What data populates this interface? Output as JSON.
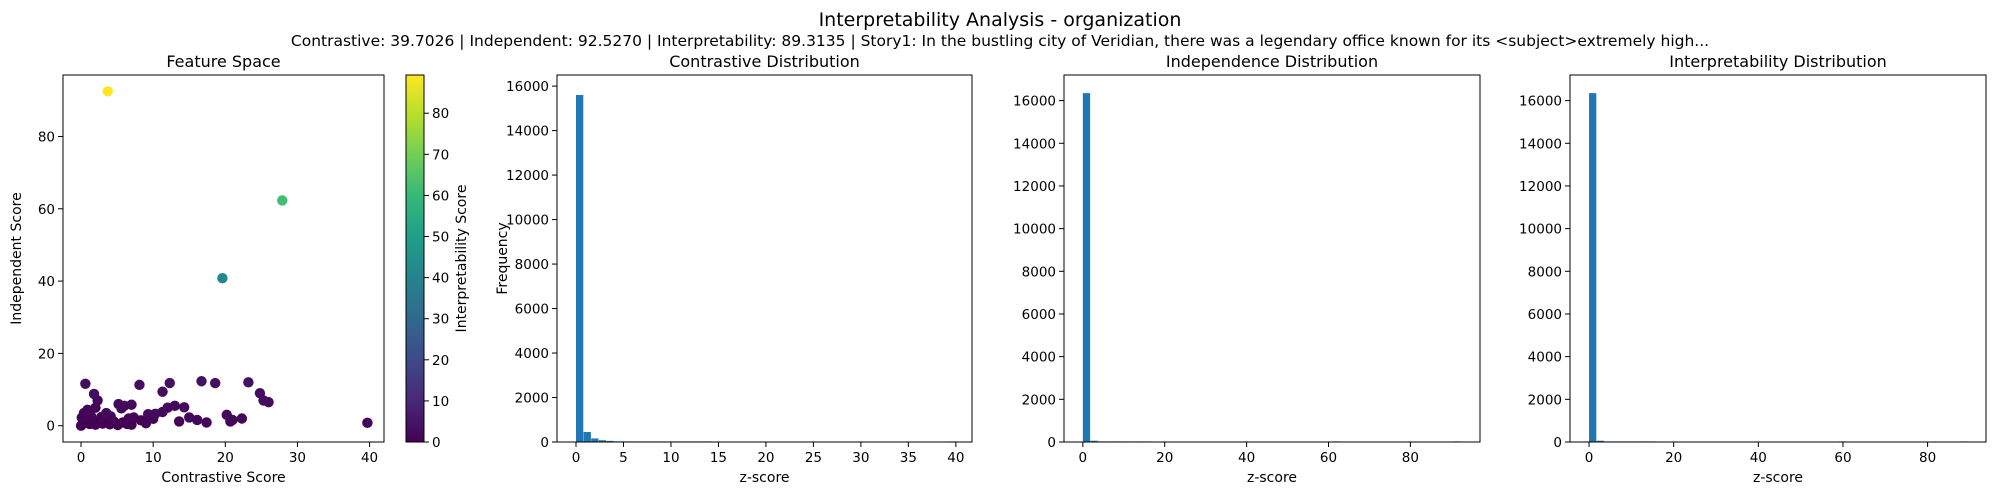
{
  "figure": {
    "title": "Interpretability Analysis - organization",
    "subtitle": "Contrastive: 39.7026 | Independent: 92.5270 | Interpretability: 89.3135 | Story1: In the bustling city of Veridian, there was a legendary office known for its <subject>extremely high..."
  },
  "colors": {
    "bar": "#1f77b4",
    "axis": "#000000",
    "viridis_stops": [
      "#440154",
      "#482878",
      "#3e4989",
      "#31688e",
      "#26828e",
      "#1f9e89",
      "#35b779",
      "#6ece58",
      "#b5de2b",
      "#fde725"
    ]
  },
  "chart_data": [
    {
      "type": "scatter",
      "title": "Feature Space",
      "xlabel": "Contrastive Score",
      "ylabel": "Independent Score",
      "xlim": [
        -2.5,
        42
      ],
      "ylim": [
        -4.5,
        97
      ],
      "xticks": [
        0,
        10,
        20,
        30,
        40
      ],
      "yticks": [
        0,
        20,
        40,
        60,
        80
      ],
      "grid": false,
      "colorbar": {
        "label": "Interpretability Score",
        "range": [
          0,
          89.3
        ],
        "ticks": [
          0,
          10,
          20,
          30,
          40,
          50,
          60,
          70,
          80
        ],
        "colormap": "viridis"
      },
      "points": [
        {
          "x": 3.7,
          "y": 92.5,
          "c": 89.3
        },
        {
          "x": 27.9,
          "y": 62.3,
          "c": 62
        },
        {
          "x": 19.6,
          "y": 40.8,
          "c": 41
        },
        {
          "x": 39.7,
          "y": 0.8,
          "c": 1
        },
        {
          "x": 0.6,
          "y": 11.6,
          "c": 3
        },
        {
          "x": 8.1,
          "y": 11.3,
          "c": 3
        },
        {
          "x": 16.7,
          "y": 12.3,
          "c": 4
        },
        {
          "x": 18.6,
          "y": 11.8,
          "c": 4
        },
        {
          "x": 23.2,
          "y": 12.0,
          "c": 4
        },
        {
          "x": 12.3,
          "y": 11.8,
          "c": 4
        },
        {
          "x": 11.3,
          "y": 9.4,
          "c": 3
        },
        {
          "x": 24.8,
          "y": 9.0,
          "c": 3
        },
        {
          "x": 26.0,
          "y": 6.5,
          "c": 3
        },
        {
          "x": 25.3,
          "y": 7.0,
          "c": 3
        },
        {
          "x": 1.8,
          "y": 8.8,
          "c": 3
        },
        {
          "x": 2.3,
          "y": 7.0,
          "c": 2
        },
        {
          "x": 5.2,
          "y": 6.0,
          "c": 2
        },
        {
          "x": 6.0,
          "y": 5.5,
          "c": 2
        },
        {
          "x": 5.6,
          "y": 4.8,
          "c": 2
        },
        {
          "x": 7.0,
          "y": 5.8,
          "c": 2
        },
        {
          "x": 3.5,
          "y": 3.5,
          "c": 2
        },
        {
          "x": 12.0,
          "y": 5.0,
          "c": 2
        },
        {
          "x": 13.0,
          "y": 5.5,
          "c": 2
        },
        {
          "x": 14.3,
          "y": 5.1,
          "c": 2
        },
        {
          "x": 11.3,
          "y": 3.8,
          "c": 2
        },
        {
          "x": 10.3,
          "y": 3.3,
          "c": 2
        },
        {
          "x": 9.3,
          "y": 3.2,
          "c": 2
        },
        {
          "x": 15.0,
          "y": 2.3,
          "c": 2
        },
        {
          "x": 16.1,
          "y": 1.6,
          "c": 2
        },
        {
          "x": 17.4,
          "y": 0.9,
          "c": 1
        },
        {
          "x": 20.2,
          "y": 3.0,
          "c": 2
        },
        {
          "x": 21.0,
          "y": 1.6,
          "c": 2
        },
        {
          "x": 22.3,
          "y": 2.0,
          "c": 2
        },
        {
          "x": 20.7,
          "y": 1.2,
          "c": 1
        },
        {
          "x": 8.3,
          "y": 1.5,
          "c": 1
        },
        {
          "x": 7.3,
          "y": 2.3,
          "c": 1
        },
        {
          "x": 4.1,
          "y": 2.6,
          "c": 1
        },
        {
          "x": 1.0,
          "y": 3.0,
          "c": 1
        },
        {
          "x": 0.0,
          "y": 0.0,
          "c": 0
        },
        {
          "x": 0.2,
          "y": 0.4,
          "c": 0
        },
        {
          "x": 0.5,
          "y": 0.8,
          "c": 0
        },
        {
          "x": 0.8,
          "y": 1.2,
          "c": 0
        },
        {
          "x": 1.2,
          "y": 0.5,
          "c": 0
        },
        {
          "x": 1.6,
          "y": 1.5,
          "c": 0
        },
        {
          "x": 2.0,
          "y": 0.3,
          "c": 0
        },
        {
          "x": 2.5,
          "y": 1.0,
          "c": 0
        },
        {
          "x": 3.0,
          "y": 0.6,
          "c": 0
        },
        {
          "x": 3.4,
          "y": 1.8,
          "c": 0
        },
        {
          "x": 4.0,
          "y": 0.4,
          "c": 0
        },
        {
          "x": 4.6,
          "y": 1.1,
          "c": 0
        },
        {
          "x": 5.1,
          "y": 0.2,
          "c": 0
        },
        {
          "x": 5.8,
          "y": 0.9,
          "c": 0
        },
        {
          "x": 6.4,
          "y": 0.5,
          "c": 0
        },
        {
          "x": 7.0,
          "y": 0.3,
          "c": 0
        },
        {
          "x": 0.1,
          "y": 2.2,
          "c": 1
        },
        {
          "x": 0.4,
          "y": 3.5,
          "c": 1
        },
        {
          "x": 1.4,
          "y": 2.6,
          "c": 1
        },
        {
          "x": 2.8,
          "y": 2.4,
          "c": 1
        },
        {
          "x": 0.9,
          "y": 4.4,
          "c": 1
        },
        {
          "x": 2.0,
          "y": 5.0,
          "c": 1
        },
        {
          "x": 6.6,
          "y": 2.0,
          "c": 1
        },
        {
          "x": 9.0,
          "y": 0.7,
          "c": 1
        },
        {
          "x": 10.0,
          "y": 1.9,
          "c": 1
        },
        {
          "x": 13.6,
          "y": 1.2,
          "c": 1
        }
      ]
    },
    {
      "type": "bar",
      "title": "Contrastive Distribution",
      "xlabel": "z-score",
      "ylabel": "Frequency",
      "xlim": [
        -2,
        41.7
      ],
      "ylim": [
        0,
        16500
      ],
      "xticks": [
        0,
        5,
        10,
        15,
        20,
        25,
        30,
        35,
        40
      ],
      "yticks": [
        0,
        2000,
        4000,
        6000,
        8000,
        10000,
        12000,
        14000,
        16000
      ],
      "bin_width": 0.8,
      "bins_start": 0,
      "values": [
        15600,
        450,
        160,
        80,
        50,
        30,
        20,
        12,
        8,
        5,
        4,
        3,
        2,
        2,
        1,
        1,
        1,
        1,
        0,
        0,
        0,
        0,
        0,
        0,
        0,
        0,
        0,
        0,
        0,
        0,
        0,
        0,
        0,
        0,
        0,
        0,
        0,
        0,
        0,
        0,
        0,
        0,
        0,
        0,
        0,
        0,
        0,
        0,
        0,
        1
      ]
    },
    {
      "type": "bar",
      "title": "Independence Distribution",
      "xlabel": "z-score",
      "ylabel": "",
      "xlim": [
        -4.6,
        97
      ],
      "ylim": [
        0,
        17200
      ],
      "xticks": [
        0,
        20,
        40,
        60,
        80
      ],
      "yticks": [
        0,
        2000,
        4000,
        6000,
        8000,
        10000,
        12000,
        14000,
        16000
      ],
      "bin_width": 1.85,
      "bins_start": 0,
      "values": [
        16350,
        60,
        20,
        10,
        5,
        3,
        2,
        1,
        1,
        0,
        0,
        0,
        0,
        0,
        0,
        0,
        0,
        0,
        0,
        0,
        0,
        0,
        0,
        0,
        0,
        0,
        0,
        0,
        0,
        0,
        0,
        0,
        0,
        1,
        0,
        0,
        0,
        0,
        0,
        0,
        0,
        0,
        0,
        0,
        0,
        0,
        0,
        0,
        0,
        1
      ]
    },
    {
      "type": "bar",
      "title": "Interpretability Distribution",
      "xlabel": "z-score",
      "ylabel": "",
      "xlim": [
        -4.5,
        93.8
      ],
      "ylim": [
        0,
        17200
      ],
      "xticks": [
        0,
        20,
        40,
        60,
        80
      ],
      "yticks": [
        0,
        2000,
        4000,
        6000,
        8000,
        10000,
        12000,
        14000,
        16000
      ],
      "bin_width": 1.79,
      "bins_start": 0,
      "values": [
        16350,
        60,
        20,
        10,
        5,
        3,
        2,
        1,
        1,
        0,
        0,
        0,
        0,
        0,
        0,
        0,
        0,
        0,
        0,
        0,
        0,
        0,
        0,
        0,
        0,
        0,
        0,
        0,
        0,
        0,
        0,
        0,
        0,
        1,
        0,
        0,
        0,
        0,
        0,
        0,
        0,
        0,
        0,
        0,
        0,
        0,
        0,
        0,
        0,
        1
      ]
    }
  ]
}
